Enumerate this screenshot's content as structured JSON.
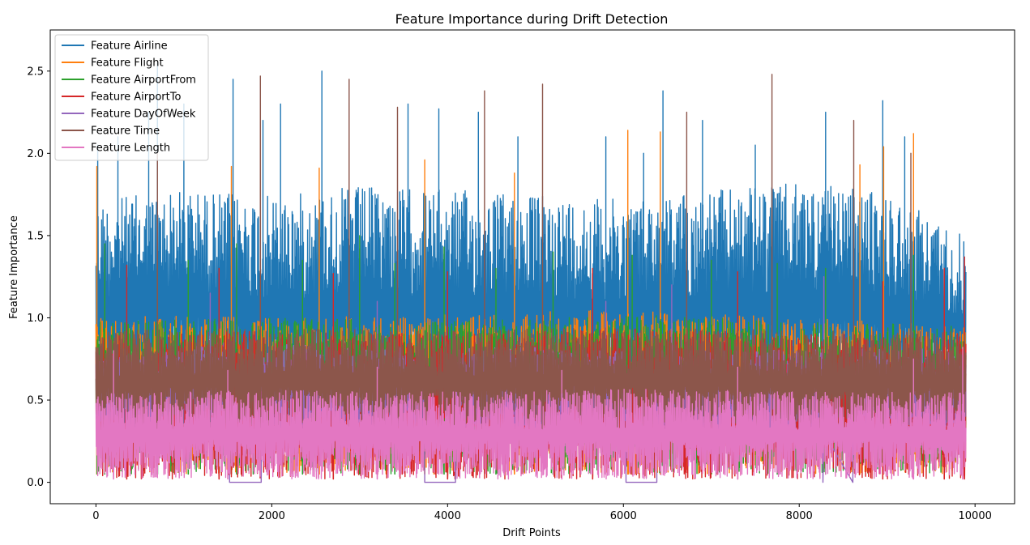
{
  "chart_data": {
    "type": "line",
    "title": "Feature Importance during Drift Detection",
    "xlabel": "Drift Points",
    "ylabel": "Feature Importance",
    "xlim": [
      -520,
      10450
    ],
    "ylim": [
      -0.13,
      2.75
    ],
    "x_ticks": [
      0,
      2000,
      4000,
      6000,
      8000,
      10000
    ],
    "x_tick_labels": [
      "0",
      "2000",
      "4000",
      "6000",
      "8000",
      "10000"
    ],
    "y_ticks": [
      0.0,
      0.5,
      1.0,
      1.5,
      2.0,
      2.5
    ],
    "y_tick_labels": [
      "0.0",
      "0.5",
      "1.0",
      "1.5",
      "2.0",
      "2.5"
    ],
    "grid": false,
    "legend_position": "top-left",
    "n_points": 9900,
    "series": [
      {
        "name": "Feature Airline",
        "color": "#1f77b4",
        "band": [
          [
            0,
            0.35,
            1.72
          ],
          [
            1000,
            0.4,
            1.78
          ],
          [
            2000,
            0.3,
            1.74
          ],
          [
            3000,
            0.35,
            1.8
          ],
          [
            4000,
            0.3,
            1.78
          ],
          [
            5000,
            0.35,
            1.75
          ],
          [
            6000,
            0.35,
            1.72
          ],
          [
            7000,
            0.3,
            1.78
          ],
          [
            8000,
            0.35,
            1.82
          ],
          [
            9000,
            0.35,
            1.76
          ],
          [
            9900,
            0.4,
            1.5
          ]
        ],
        "peaks": [
          [
            20,
            2.05
          ],
          [
            250,
            2.1
          ],
          [
            600,
            2.25
          ],
          [
            700,
            2.55
          ],
          [
            1000,
            2.3
          ],
          [
            1560,
            2.45
          ],
          [
            1900,
            2.2
          ],
          [
            2100,
            2.3
          ],
          [
            2570,
            2.5
          ],
          [
            3550,
            2.3
          ],
          [
            3900,
            2.27
          ],
          [
            4350,
            2.25
          ],
          [
            4800,
            2.1
          ],
          [
            5800,
            2.1
          ],
          [
            6230,
            2.0
          ],
          [
            6450,
            2.38
          ],
          [
            6900,
            2.2
          ],
          [
            7500,
            2.05
          ],
          [
            8300,
            2.25
          ],
          [
            8950,
            2.32
          ],
          [
            9200,
            2.1
          ]
        ]
      },
      {
        "name": "Feature Flight",
        "color": "#ff7f0e",
        "band": [
          [
            0,
            0.05,
            1.02
          ],
          [
            2000,
            0.05,
            1.0
          ],
          [
            4000,
            0.05,
            1.02
          ],
          [
            6000,
            0.05,
            1.05
          ],
          [
            8000,
            0.05,
            1.0
          ],
          [
            9900,
            0.05,
            0.95
          ]
        ],
        "peaks": [
          [
            10,
            1.92
          ],
          [
            1540,
            1.92
          ],
          [
            2540,
            1.91
          ],
          [
            3740,
            1.96
          ],
          [
            4760,
            1.88
          ],
          [
            6050,
            2.14
          ],
          [
            6420,
            2.13
          ],
          [
            8690,
            1.93
          ],
          [
            8960,
            2.04
          ],
          [
            9300,
            2.12
          ]
        ]
      },
      {
        "name": "Feature AirportFrom",
        "color": "#2ca02c",
        "band": [
          [
            0,
            0.05,
            0.98
          ],
          [
            2000,
            0.05,
            1.0
          ],
          [
            4000,
            0.05,
            0.98
          ],
          [
            6000,
            0.05,
            1.02
          ],
          [
            8000,
            0.05,
            0.98
          ],
          [
            9900,
            0.05,
            0.95
          ]
        ],
        "peaks": [
          [
            100,
            1.45
          ],
          [
            700,
            1.33
          ],
          [
            1050,
            1.35
          ],
          [
            1600,
            1.45
          ],
          [
            2350,
            1.35
          ],
          [
            3000,
            1.5
          ],
          [
            3400,
            1.33
          ],
          [
            3960,
            1.43
          ],
          [
            4550,
            1.3
          ],
          [
            5200,
            1.4
          ],
          [
            6100,
            1.38
          ],
          [
            7000,
            1.35
          ],
          [
            7750,
            1.33
          ],
          [
            8300,
            1.3
          ],
          [
            9300,
            1.38
          ]
        ]
      },
      {
        "name": "Feature AirportTo",
        "color": "#d62728",
        "band": [
          [
            0,
            0.02,
            0.9
          ],
          [
            2000,
            0.02,
            0.92
          ],
          [
            4000,
            0.02,
            0.9
          ],
          [
            6000,
            0.02,
            0.94
          ],
          [
            8000,
            0.02,
            0.9
          ],
          [
            9900,
            0.02,
            0.92
          ]
        ],
        "peaks": [
          [
            350,
            1.32
          ],
          [
            1400,
            1.3
          ],
          [
            2700,
            1.27
          ],
          [
            4000,
            1.28
          ],
          [
            5650,
            1.3
          ],
          [
            7300,
            1.28
          ],
          [
            8950,
            1.22
          ],
          [
            9650,
            1.3
          ],
          [
            9880,
            1.37
          ]
        ]
      },
      {
        "name": "Feature DayOfWeek",
        "color": "#9467bd",
        "band": [
          [
            0,
            0.3,
            0.75
          ],
          [
            1500,
            0.3,
            0.85
          ],
          [
            3000,
            0.3,
            0.82
          ],
          [
            5000,
            0.3,
            0.82
          ],
          [
            7000,
            0.3,
            0.8
          ],
          [
            9000,
            0.3,
            0.82
          ],
          [
            9900,
            0.3,
            0.8
          ]
        ],
        "peaks": [
          [
            1300,
            1.15
          ],
          [
            3200,
            1.1
          ],
          [
            5800,
            1.1
          ],
          [
            6550,
            1.2
          ],
          [
            8280,
            1.25
          ]
        ],
        "flat_segments": [
          [
            1520,
            1880,
            0.0
          ],
          [
            3740,
            4090,
            0.0
          ],
          [
            6030,
            6380,
            0.0
          ],
          [
            8270,
            8610,
            0.0
          ]
        ]
      },
      {
        "name": "Feature Time",
        "color": "#8c564b",
        "band": [
          [
            0,
            0.3,
            0.92
          ],
          [
            2000,
            0.3,
            0.94
          ],
          [
            4000,
            0.3,
            0.92
          ],
          [
            6000,
            0.3,
            0.95
          ],
          [
            8000,
            0.3,
            0.92
          ],
          [
            9900,
            0.3,
            0.92
          ]
        ],
        "peaks": [
          [
            700,
            2.0
          ],
          [
            1870,
            2.47
          ],
          [
            2880,
            2.45
          ],
          [
            3430,
            2.28
          ],
          [
            4420,
            2.38
          ],
          [
            5080,
            2.42
          ],
          [
            6720,
            2.25
          ],
          [
            7690,
            2.48
          ],
          [
            8620,
            2.2
          ],
          [
            9270,
            2.0
          ]
        ]
      },
      {
        "name": "Feature Length",
        "color": "#e377c2",
        "band": [
          [
            0,
            0.02,
            0.55
          ],
          [
            2000,
            0.02,
            0.56
          ],
          [
            4000,
            0.02,
            0.55
          ],
          [
            6000,
            0.02,
            0.57
          ],
          [
            8000,
            0.02,
            0.55
          ],
          [
            9900,
            0.02,
            0.55
          ]
        ],
        "peaks": [
          [
            200,
            0.8
          ],
          [
            1500,
            0.68
          ],
          [
            3200,
            0.7
          ],
          [
            5300,
            0.68
          ],
          [
            7300,
            0.7
          ],
          [
            9300,
            0.75
          ],
          [
            9860,
            0.82
          ]
        ]
      }
    ]
  }
}
